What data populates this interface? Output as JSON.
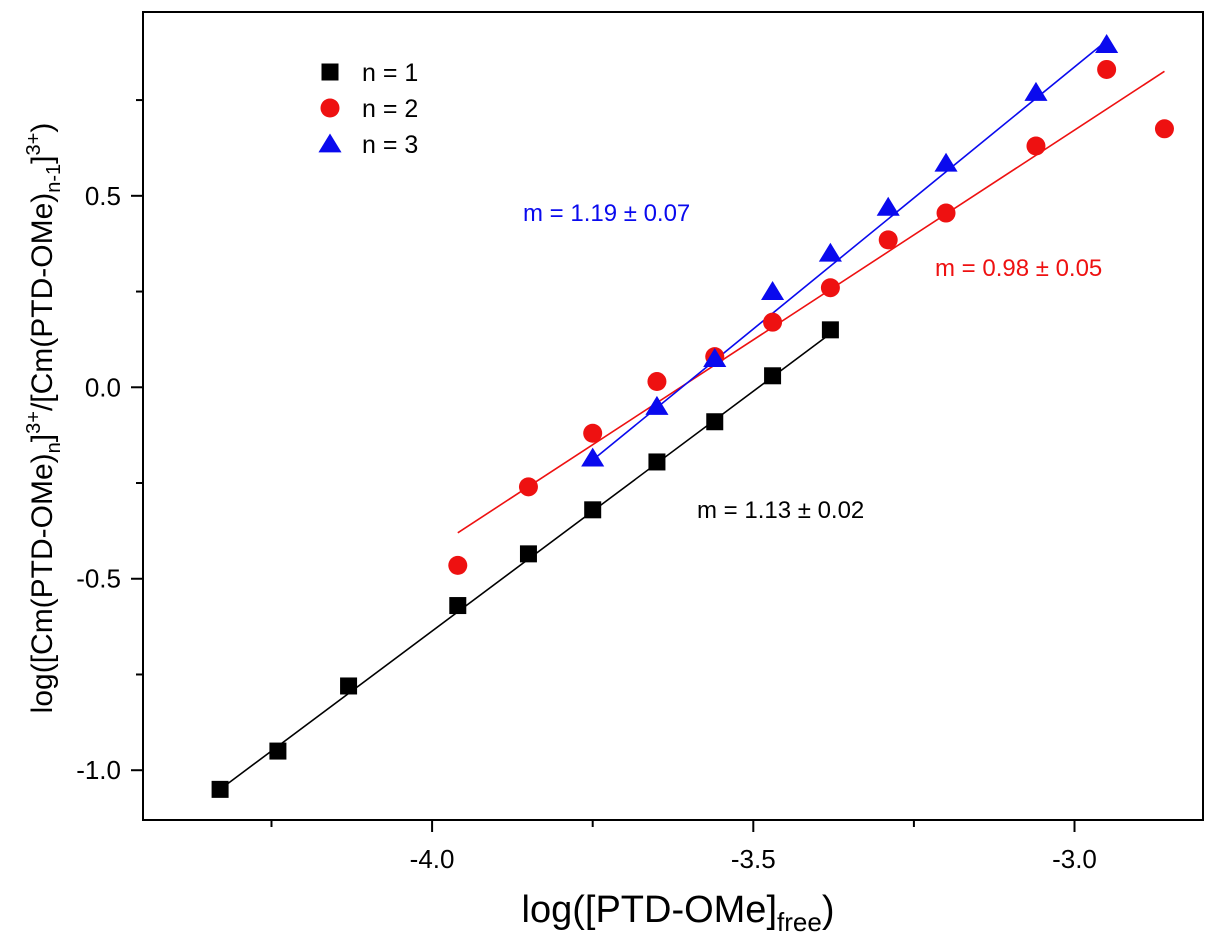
{
  "chart_data": {
    "type": "scatter",
    "title": "",
    "xlabel": {
      "main": "log([PTD-OMe]",
      "sub": "free",
      "close": ")"
    },
    "ylabel": {
      "p1": "log([Cm(PTD-OMe)",
      "sub1": "n",
      "p2": "]",
      "sup1": "3+",
      "p3": "/[Cm(PTD-OMe)",
      "sub2": "n-1",
      "p4": "]",
      "sup2": "3+",
      "p5": ")"
    },
    "xlim": [
      -4.45,
      -2.8
    ],
    "ylim": [
      -1.13,
      0.98
    ],
    "x_ticks": [
      -4.0,
      -3.5,
      -3.0
    ],
    "x_tick_labels": [
      "-4.0",
      "-3.5",
      "-3.0"
    ],
    "x_minor_ticks": [
      -4.25,
      -3.75,
      -3.25
    ],
    "y_ticks": [
      -1.0,
      -0.5,
      0.0,
      0.5
    ],
    "y_tick_labels": [
      "-1.0",
      "-0.5",
      "0.0",
      "0.5"
    ],
    "y_minor_ticks": [
      -0.75,
      -0.25,
      0.25,
      0.75
    ],
    "grid": false,
    "legend_position": "top-left",
    "series": [
      {
        "name": "n = 1",
        "marker": "square",
        "color": "#000000",
        "x": [
          -4.33,
          -4.24,
          -4.13,
          -3.96,
          -3.85,
          -3.75,
          -3.65,
          -3.56,
          -3.47,
          -3.38
        ],
        "y": [
          -1.05,
          -0.95,
          -0.78,
          -0.57,
          -0.435,
          -0.32,
          -0.195,
          -0.09,
          0.03,
          0.15
        ],
        "fit": {
          "x": [
            -4.33,
            -3.38
          ],
          "y": [
            -1.05,
            0.14
          ]
        },
        "annotation": "m = 1.13 ± 0.02"
      },
      {
        "name": "n = 2",
        "marker": "circle",
        "color": "#ee1111",
        "x": [
          -3.96,
          -3.85,
          -3.75,
          -3.65,
          -3.56,
          -3.47,
          -3.38,
          -3.29,
          -3.2,
          -3.06,
          -2.95,
          -2.86
        ],
        "y": [
          -0.465,
          -0.26,
          -0.12,
          0.015,
          0.08,
          0.17,
          0.26,
          0.385,
          0.455,
          0.63,
          0.83,
          0.675
        ],
        "fit": {
          "x": [
            -3.96,
            -2.86
          ],
          "y": [
            -0.38,
            0.825
          ]
        },
        "annotation": "m = 0.98 ± 0.05"
      },
      {
        "name": "n = 3",
        "marker": "triangle",
        "color": "#0a0aee",
        "x": [
          -3.75,
          -3.65,
          -3.56,
          -3.47,
          -3.38,
          -3.29,
          -3.2,
          -3.06,
          -2.95
        ],
        "y": [
          -0.185,
          -0.05,
          0.075,
          0.25,
          0.35,
          0.47,
          0.585,
          0.77,
          0.895
        ],
        "fit": {
          "x": [
            -3.75,
            -2.95
          ],
          "y": [
            -0.19,
            0.905
          ]
        },
        "annotation": "m = 1.19 ± 0.07"
      }
    ]
  }
}
